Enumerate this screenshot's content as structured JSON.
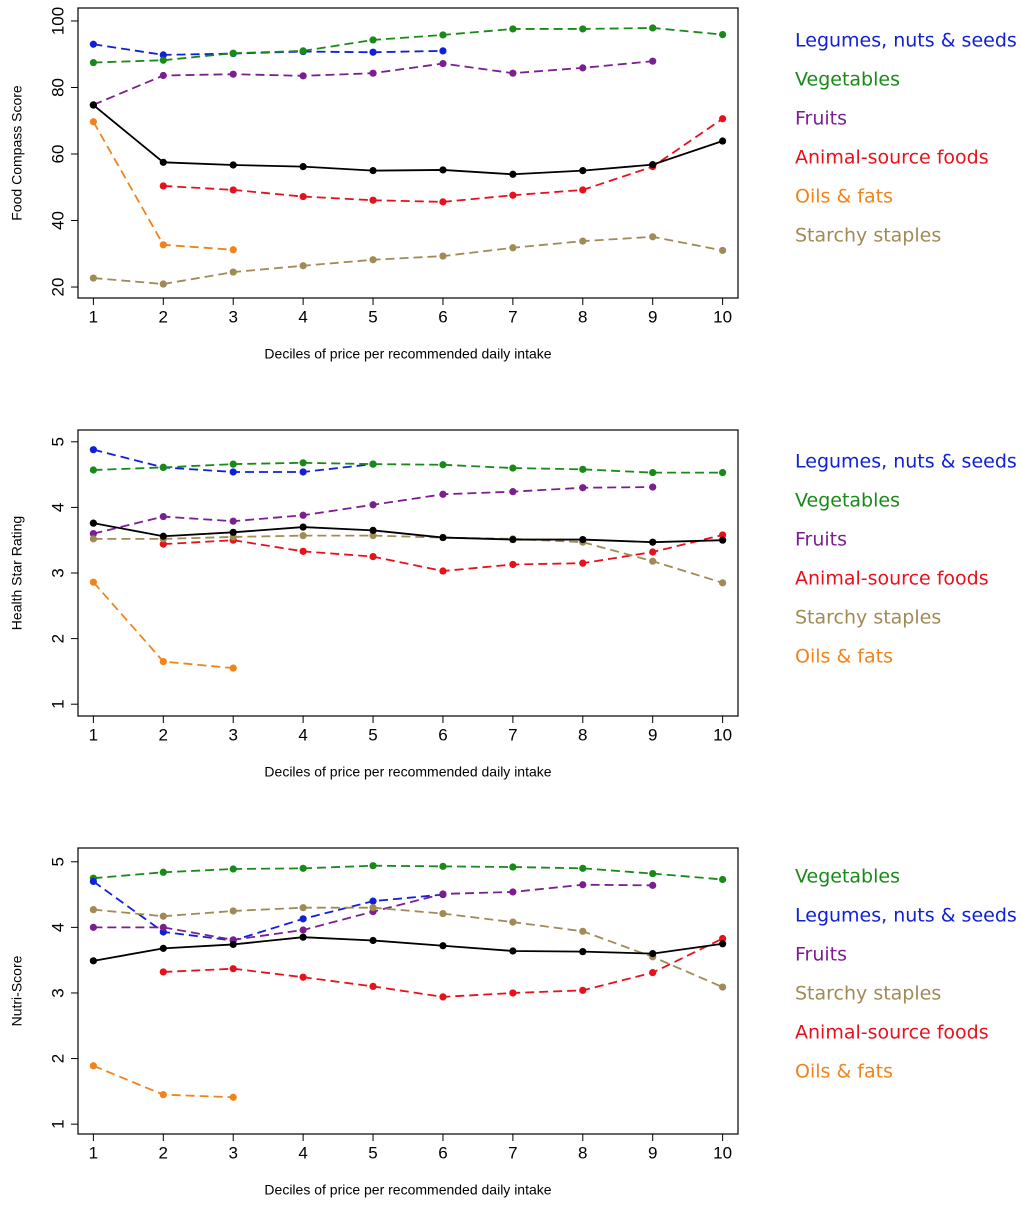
{
  "chart_data": [
    {
      "type": "line",
      "ylabel": "Food Compass Score",
      "xlabel": "Deciles of price per recommended daily intake",
      "x": [
        1,
        2,
        3,
        4,
        5,
        6,
        7,
        8,
        9,
        10
      ],
      "xlim": [
        0.78,
        10.22
      ],
      "xticks": [
        1,
        2,
        3,
        4,
        5,
        6,
        7,
        8,
        9,
        10
      ],
      "ylim": [
        16.7,
        103.9
      ],
      "yticks": [
        20,
        40,
        60,
        80,
        100
      ],
      "series": [
        {
          "name": "Legumes, nuts & seeds",
          "color": "#1020d8",
          "dashed": true,
          "values": [
            93,
            89.8,
            90.2,
            90.8,
            90.6,
            91.0,
            null,
            null,
            null,
            null
          ]
        },
        {
          "name": "Vegetables",
          "color": "#178a17",
          "dashed": true,
          "values": [
            87.5,
            88.2,
            90.3,
            91.0,
            94.3,
            95.8,
            97.6,
            97.6,
            97.9,
            95.9
          ]
        },
        {
          "name": "Fruits",
          "color": "#7b1f90",
          "dashed": true,
          "values": [
            74.8,
            83.6,
            84.0,
            83.5,
            84.3,
            87.2,
            84.3,
            85.9,
            87.9,
            null
          ]
        },
        {
          "name": "Animal-source foods",
          "color": "#e8101b",
          "dashed": true,
          "values": [
            null,
            50.4,
            49.2,
            47.2,
            46.1,
            45.6,
            47.6,
            49.2,
            56.2,
            70.6
          ]
        },
        {
          "name": "Oils & fats",
          "color": "#f0841a",
          "dashed": true,
          "values": [
            69.7,
            32.7,
            31.2,
            null,
            null,
            null,
            null,
            null,
            null,
            null
          ]
        },
        {
          "name": "Starchy staples",
          "color": "#a08a55",
          "dashed": true,
          "values": [
            22.7,
            20.9,
            24.5,
            26.4,
            28.2,
            29.3,
            31.8,
            33.8,
            35.1,
            31.0
          ]
        },
        {
          "color": "#000000",
          "dashed": false,
          "values": [
            74.7,
            57.5,
            56.7,
            56.2,
            55.0,
            55.2,
            53.9,
            55.0,
            56.8,
            63.9
          ]
        }
      ]
    },
    {
      "type": "line",
      "ylabel": "Health Star Rating",
      "xlabel": "Deciles of price per recommended daily intake",
      "x": [
        1,
        2,
        3,
        4,
        5,
        6,
        7,
        8,
        9,
        10
      ],
      "xlim": [
        0.78,
        10.22
      ],
      "xticks": [
        1,
        2,
        3,
        4,
        5,
        6,
        7,
        8,
        9,
        10
      ],
      "ylim": [
        0.82,
        5.18
      ],
      "yticks": [
        1,
        2,
        3,
        4,
        5
      ],
      "series": [
        {
          "name": "Legumes, nuts & seeds",
          "color": "#1020d8",
          "dashed": true,
          "values": [
            4.88,
            4.61,
            4.54,
            4.54,
            4.66,
            null,
            null,
            null,
            null,
            null
          ]
        },
        {
          "name": "Vegetables",
          "color": "#178a17",
          "dashed": true,
          "values": [
            4.57,
            4.61,
            4.66,
            4.68,
            4.66,
            4.65,
            4.6,
            4.58,
            4.53,
            4.53
          ]
        },
        {
          "name": "Fruits",
          "color": "#7b1f90",
          "dashed": true,
          "values": [
            3.6,
            3.86,
            3.79,
            3.88,
            4.04,
            4.2,
            4.24,
            4.3,
            4.31,
            null
          ]
        },
        {
          "name": "Animal-source foods",
          "color": "#e8101b",
          "dashed": true,
          "values": [
            null,
            3.44,
            3.5,
            3.33,
            3.25,
            3.03,
            3.13,
            3.15,
            3.32,
            3.58
          ]
        },
        {
          "name": "Starchy staples",
          "color": "#a08a55",
          "dashed": true,
          "values": [
            3.52,
            3.52,
            3.55,
            3.57,
            3.57,
            3.54,
            3.52,
            3.47,
            3.18,
            2.85
          ]
        },
        {
          "name": "Oils & fats",
          "color": "#f0841a",
          "dashed": true,
          "values": [
            2.86,
            1.65,
            1.55,
            null,
            null,
            null,
            null,
            null,
            null,
            null
          ]
        },
        {
          "color": "#000000",
          "dashed": false,
          "values": [
            3.76,
            3.56,
            3.62,
            3.7,
            3.65,
            3.54,
            3.51,
            3.51,
            3.47,
            3.5
          ]
        }
      ]
    },
    {
      "type": "line",
      "ylabel": "Nutri-Score",
      "xlabel": "Deciles of price per recommended daily intake",
      "x": [
        1,
        2,
        3,
        4,
        5,
        6,
        7,
        8,
        9,
        10
      ],
      "xlim": [
        0.78,
        10.22
      ],
      "xticks": [
        1,
        2,
        3,
        4,
        5,
        6,
        7,
        8,
        9,
        10
      ],
      "ylim": [
        0.85,
        5.21
      ],
      "yticks": [
        1,
        2,
        3,
        4,
        5
      ],
      "series": [
        {
          "name": "Vegetables",
          "color": "#178a17",
          "dashed": true,
          "values": [
            4.75,
            4.84,
            4.89,
            4.9,
            4.94,
            4.93,
            4.92,
            4.9,
            4.82,
            4.73
          ]
        },
        {
          "name": "Legumes, nuts & seeds",
          "color": "#1020d8",
          "dashed": true,
          "values": [
            4.7,
            3.93,
            3.8,
            4.13,
            4.4,
            4.5,
            null,
            null,
            null,
            null
          ]
        },
        {
          "name": "Fruits",
          "color": "#7b1f90",
          "dashed": true,
          "values": [
            4.0,
            4.0,
            3.81,
            3.96,
            4.24,
            4.51,
            4.54,
            4.65,
            4.64,
            null
          ]
        },
        {
          "name": "Starchy staples",
          "color": "#a08a55",
          "dashed": true,
          "values": [
            4.27,
            4.17,
            4.25,
            4.3,
            4.3,
            4.21,
            4.08,
            3.94,
            3.55,
            3.09
          ]
        },
        {
          "name": "Animal-source foods",
          "color": "#e8101b",
          "dashed": true,
          "values": [
            null,
            3.32,
            3.37,
            3.24,
            3.1,
            2.94,
            3.0,
            3.04,
            3.31,
            3.83
          ]
        },
        {
          "name": "Oils & fats",
          "color": "#f0841a",
          "dashed": true,
          "values": [
            1.89,
            1.45,
            1.41,
            null,
            null,
            null,
            null,
            null,
            null,
            null
          ]
        },
        {
          "color": "#000000",
          "dashed": false,
          "values": [
            3.49,
            3.68,
            3.74,
            3.85,
            3.8,
            3.72,
            3.64,
            3.63,
            3.6,
            3.75
          ]
        }
      ]
    }
  ]
}
